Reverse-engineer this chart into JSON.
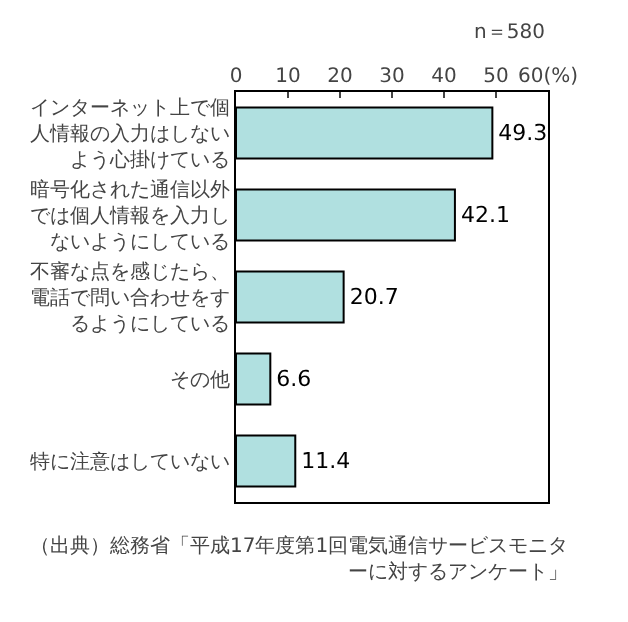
{
  "chart_data": {
    "type": "bar",
    "orientation": "horizontal",
    "categories": [
      "インターネット上で個人情報の入力はしないよう心掛けている",
      "暗号化された通信以外では個人情報を入力しないようにしている",
      "不審な点を感じたら、電話で問い合わせをするようにしている",
      "その他",
      "特に注意はしていない"
    ],
    "values": [
      49.3,
      42.1,
      20.7,
      6.6,
      11.4
    ],
    "color": "#b0e0e0",
    "xlim": [
      0,
      60
    ],
    "xticks": [
      0,
      10,
      20,
      30,
      40,
      50,
      {
        "value": 60,
        "label": "60(%)"
      }
    ],
    "data_labels": true,
    "grid": false,
    "annotations": [
      "n＝580",
      "（出典）総務省「平成17年度第1回電気通信サービスモニターに対するアンケート」"
    ]
  }
}
